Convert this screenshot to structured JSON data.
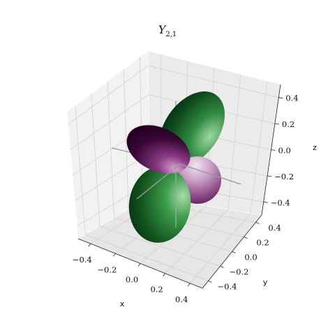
{
  "chart_data": {
    "type": "surface3d",
    "function": "Y_{2,1}",
    "title": {
      "main": "Y",
      "subscript": "2,1"
    },
    "xlabel": "x",
    "ylabel": "y",
    "zlabel": "z",
    "xlim": [
      -0.5,
      0.5
    ],
    "ylim": [
      -0.5,
      0.5
    ],
    "zlim": [
      -0.5,
      0.5
    ],
    "xticks": [
      -0.4,
      -0.2,
      0.0,
      0.2,
      0.4
    ],
    "yticks": [
      -0.4,
      -0.2,
      0.0,
      0.2,
      0.4
    ],
    "zticks": [
      -0.4,
      -0.2,
      0.0,
      0.2,
      0.4
    ],
    "xtick_labels": [
      "−0.4",
      "−0.2",
      "0.0",
      "0.2",
      "0.4"
    ],
    "ytick_labels": [
      "−0.4",
      "−0.2",
      "0.0",
      "0.2",
      "0.4"
    ],
    "ztick_labels": [
      "−0.4",
      "−0.2",
      "0.0",
      "0.2",
      "0.4"
    ],
    "lobes": [
      {
        "name": "upper green lobe",
        "sign": "positive",
        "color": "#1f6b2c"
      },
      {
        "name": "lower green lobe",
        "sign": "positive",
        "color": "#1f6b2c"
      },
      {
        "name": "upper purple lobe",
        "sign": "negative",
        "color": "#4a0a44"
      },
      {
        "name": "lower purple lobe",
        "sign": "negative",
        "color": "#7a3b76"
      }
    ],
    "colormap": "PRGn",
    "grid": true,
    "axis_lines": true,
    "pane_color": "#f2f2f2"
  }
}
